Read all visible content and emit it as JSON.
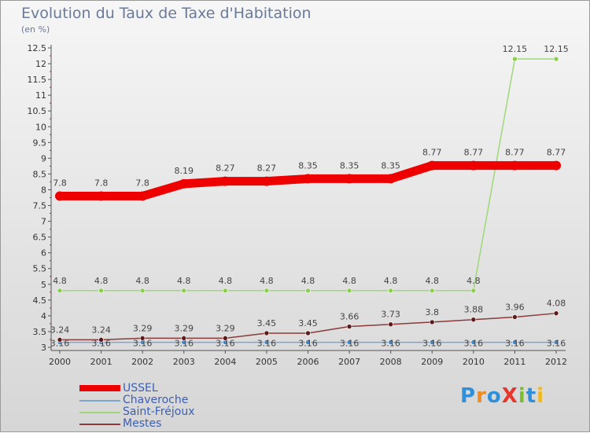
{
  "title": "Evolution du Taux de Taxe d'Habitation",
  "subtitle": "(en %)",
  "brand": "ProXiti",
  "chart_data": {
    "type": "line",
    "x": [
      "2000",
      "2001",
      "2002",
      "2003",
      "2004",
      "2005",
      "2006",
      "2007",
      "2008",
      "2009",
      "2010",
      "2011",
      "2012"
    ],
    "ylim": [
      3,
      12.5
    ],
    "yticks": [
      "3",
      "3.5",
      "4",
      "4.5",
      "5",
      "5.5",
      "6",
      "6.5",
      "7",
      "7.5",
      "8",
      "8.5",
      "9",
      "9.5",
      "10",
      "10.5",
      "11",
      "11.5",
      "12",
      "12.5"
    ],
    "grid": false,
    "legend_position": "bottom-left",
    "series": [
      {
        "name": "USSEL",
        "color": "#ee0000",
        "values": [
          7.8,
          7.8,
          7.8,
          8.19,
          8.27,
          8.27,
          8.35,
          8.35,
          8.35,
          8.77,
          8.77,
          8.77,
          8.77
        ],
        "labels": [
          "7.8",
          "7.8",
          "7.8",
          "8.19",
          "8.27",
          "8.27",
          "8.35",
          "8.35",
          "8.35",
          "8.77",
          "8.77",
          "8.77",
          "8.77"
        ]
      },
      {
        "name": "Chaveroche",
        "color": "#7ba7cf",
        "marker_color": "#4a86c0",
        "values": [
          3.16,
          3.16,
          3.16,
          3.16,
          3.16,
          3.16,
          3.16,
          3.16,
          3.16,
          3.16,
          3.16,
          3.16,
          3.16
        ],
        "labels": [
          "3.16",
          "3.16",
          "3.16",
          "3.16",
          "3.16",
          "3.16",
          "3.16",
          "3.16",
          "3.16",
          "3.16",
          "3.16",
          "3.16",
          "3.16"
        ]
      },
      {
        "name": "Saint-Fréjoux",
        "color": "#9ed878",
        "marker_color": "#8bd04a",
        "values": [
          4.8,
          4.8,
          4.8,
          4.8,
          4.8,
          4.8,
          4.8,
          4.8,
          4.8,
          4.8,
          4.8,
          12.15,
          12.15
        ],
        "labels": [
          "4.8",
          "4.8",
          "4.8",
          "4.8",
          "4.8",
          "4.8",
          "4.8",
          "4.8",
          "4.8",
          "4.8",
          "4.8",
          "12.15",
          "12.15"
        ]
      },
      {
        "name": "Mestes",
        "color": "#8a3a3a",
        "marker_color": "#5c1a1a",
        "values": [
          3.24,
          3.24,
          3.29,
          3.29,
          3.29,
          3.45,
          3.45,
          3.66,
          3.73,
          3.8,
          3.88,
          3.96,
          4.08
        ],
        "labels": [
          "3.24",
          "3.24",
          "3.29",
          "3.29",
          "3.29",
          "3.45",
          "3.45",
          "3.66",
          "3.73",
          "3.8",
          "3.88",
          "3.96",
          "4.08"
        ]
      }
    ]
  }
}
